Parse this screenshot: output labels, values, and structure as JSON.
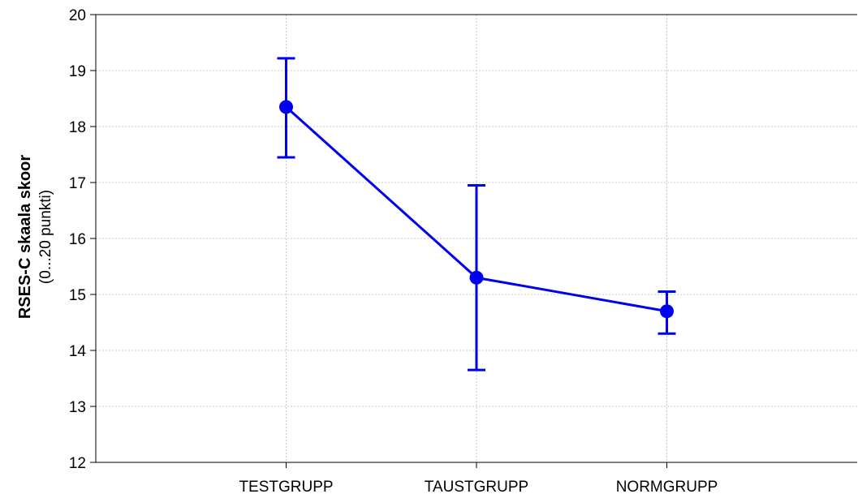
{
  "chart_data": {
    "type": "line",
    "categories": [
      "TESTGRUPP",
      "TAUSTGRUPP",
      "NORMGRUPP"
    ],
    "series": [
      {
        "values": [
          18.35,
          15.3,
          14.7
        ],
        "error_low": [
          17.45,
          13.65,
          14.3
        ],
        "error_high": [
          19.22,
          16.95,
          15.05
        ]
      }
    ],
    "ylabel": "RSES-C skaala skoor",
    "ylabel_sub": "(0...20 punkti)",
    "xlabel": "",
    "ylim": [
      12,
      20
    ],
    "yticks": [
      "12",
      "13",
      "14",
      "15",
      "16",
      "17",
      "18",
      "19",
      "20"
    ],
    "grid": true,
    "colors": {
      "series": "#0000ee",
      "grid": "#c8c8c8",
      "axis": "#000000"
    }
  }
}
